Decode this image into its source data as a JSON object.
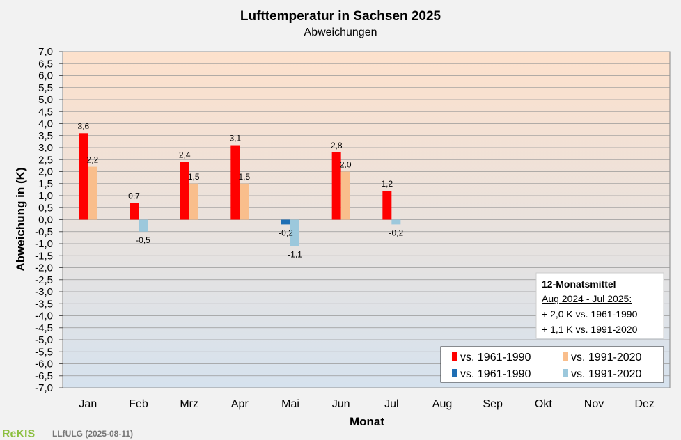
{
  "chart_data": {
    "type": "bar",
    "title": "Lufttemperatur in Sachsen 2025",
    "subtitle": "Abweichungen",
    "xlabel": "Monat",
    "ylabel": "Abweichung in (K)",
    "ylim": [
      -7.0,
      7.0
    ],
    "ytick_step": 0.5,
    "categories": [
      "Jan",
      "Feb",
      "Mrz",
      "Apr",
      "Mai",
      "Jun",
      "Jul",
      "Aug",
      "Sep",
      "Okt",
      "Nov",
      "Dez"
    ],
    "series": [
      {
        "name": "vs. 1961-1990",
        "color_pos": "#ff0000",
        "color_neg": "#1f6fb4",
        "values": [
          3.6,
          0.7,
          2.4,
          3.1,
          -0.2,
          2.8,
          1.2,
          null,
          null,
          null,
          null,
          null
        ],
        "labels": [
          "3,6",
          "0,7",
          "2,4",
          "3,1",
          "-0,2",
          "2,8",
          "1,2",
          "",
          "",
          "",
          "",
          ""
        ]
      },
      {
        "name": "vs. 1991-2020",
        "color_pos": "#f9be8c",
        "color_neg": "#9cc8dc",
        "values": [
          2.2,
          -0.5,
          1.5,
          1.5,
          -1.1,
          2.0,
          -0.2,
          null,
          null,
          null,
          null,
          null
        ],
        "labels": [
          "2,2",
          "-0,5",
          "1,5",
          "1,5",
          "-1,1",
          "2,0",
          "-0,2",
          "",
          "",
          "",
          "",
          ""
        ]
      }
    ],
    "legend": {
      "position": "bottom-right",
      "entries": [
        {
          "label": "vs. 1961-1990",
          "color": "#ff0000"
        },
        {
          "label": "vs. 1991-2020",
          "color": "#f9be8c"
        },
        {
          "label": "vs. 1961-1990",
          "color": "#1f6fb4"
        },
        {
          "label": "vs. 1991-2020",
          "color": "#9cc8dc"
        }
      ]
    },
    "annotation": {
      "title": "12-Monatsmittel",
      "period": "Aug 2024 - Jul 2025:",
      "line1": "+ 2,0 K vs. 1961-1990",
      "line2": "+ 1,1 K vs. 1991-2020"
    },
    "grid": true,
    "background_gradient": [
      "#fde1cc",
      "#d6e2ee"
    ]
  },
  "footer": {
    "logo": "ReKIS",
    "text": "LLfULG  (2025-08-11)"
  }
}
